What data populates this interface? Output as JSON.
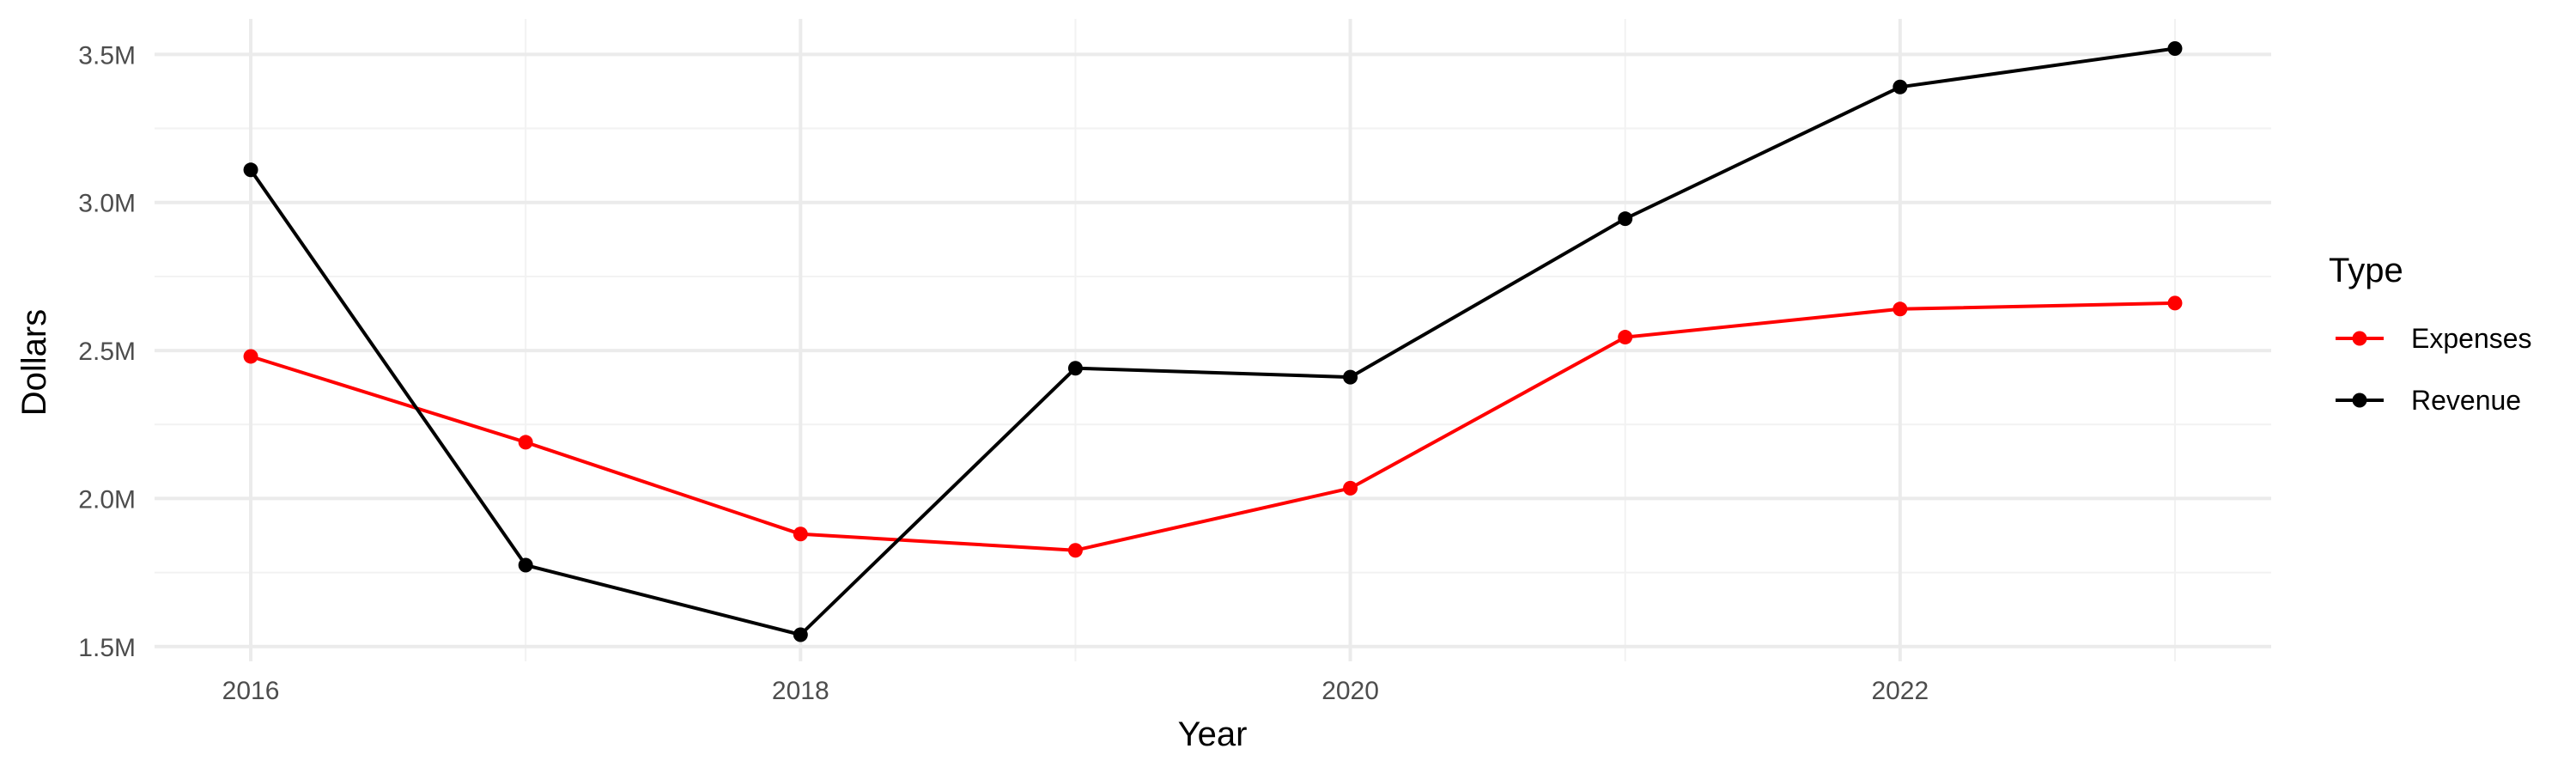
{
  "chart_data": {
    "type": "line",
    "title": "",
    "xlabel": "Year",
    "ylabel": "Dollars",
    "x": [
      2016,
      2017,
      2018,
      2019,
      2020,
      2021,
      2022,
      2023
    ],
    "x_ticks": [
      "2016",
      "2018",
      "2020",
      "2022"
    ],
    "y_ticks": [
      "1.5M",
      "2.0M",
      "2.5M",
      "3.0M",
      "3.5M"
    ],
    "ylim": [
      1450000,
      3620000
    ],
    "xlim": [
      2015.65,
      2023.35
    ],
    "grid": true,
    "legend": {
      "title": "Type",
      "placement": "right"
    },
    "series": [
      {
        "name": "Expenses",
        "color": "#ff0000",
        "values": [
          2480000,
          2190000,
          1880000,
          1825000,
          2035000,
          2545000,
          2640000,
          2660000
        ]
      },
      {
        "name": "Revenue",
        "color": "#000000",
        "values": [
          3110000,
          1775000,
          1540000,
          2440000,
          2410000,
          2945000,
          3390000,
          3520000
        ]
      }
    ]
  }
}
